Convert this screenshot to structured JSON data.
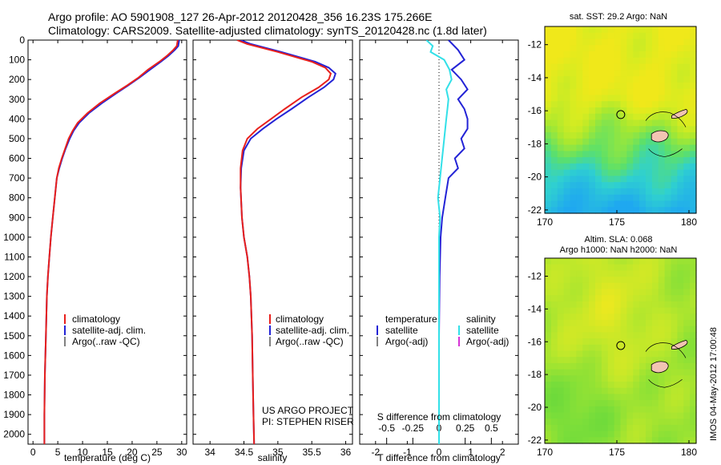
{
  "header": {
    "line1": "Argo profile: AO 5901908_127 26-Apr-2012 20120428_356 16.23S 175.266E",
    "line2": "Climatology: CARS2009. Satellite-adjusted climatology: synTS_20120428.nc (1.8d later)"
  },
  "colors": {
    "climatology": "#e8201c",
    "satellite": "#2323d6",
    "argo": "#000000",
    "sat_s": "#33e0e8",
    "argo_s": "#d633d6"
  },
  "depth_ticks": [
    "0",
    "100",
    "200",
    "300",
    "400",
    "500",
    "600",
    "700",
    "800",
    "900",
    "1000",
    "1100",
    "1200",
    "1300",
    "1400",
    "1500",
    "1600",
    "1700",
    "1800",
    "1900",
    "2000"
  ],
  "legend_panels": [
    "climatology",
    "satellite-adj. clim.",
    "Argo(..raw -QC)"
  ],
  "project": {
    "line1": "US ARGO PROJECT",
    "line2": "PI: STEPHEN RISER"
  },
  "diff_legend": {
    "temp_head": "temperature",
    "sal_head": "salinity",
    "satellite": "satellite",
    "argo": "Argo(-adj)"
  },
  "sst_map": {
    "title": "sat. SST: 29.2 Argo: NaN"
  },
  "sla_map": {
    "title1": "Altim. SLA: 0.068",
    "title2": "Argo h1000: NaN h2000: NaN"
  },
  "side_text": "IMOS 04-May-2012 17:00:48",
  "chart_data": [
    {
      "type": "line",
      "name": "temperature",
      "xlabel": "temperature (deg C)",
      "ylabel": "",
      "xlim": [
        -1,
        31
      ],
      "ylim": [
        2050,
        0
      ],
      "xticks": [
        "0",
        "5",
        "10",
        "15",
        "20",
        "25",
        "30"
      ],
      "series": [
        {
          "name": "climatology",
          "x": [
            29.2,
            29,
            28.3,
            27,
            25.5,
            23.2,
            21.3,
            19,
            16.5,
            13.5,
            11,
            9,
            8,
            7.2,
            6.5,
            5.8,
            5.2,
            4.8,
            4.4,
            4,
            3.6,
            3.3,
            3,
            2.8,
            2.6,
            2.4,
            2.3,
            2.3
          ],
          "y": [
            0,
            30,
            50,
            80,
            110,
            150,
            190,
            230,
            270,
            320,
            370,
            420,
            460,
            500,
            550,
            600,
            650,
            700,
            800,
            900,
            1000,
            1100,
            1200,
            1300,
            1500,
            1700,
            1900,
            2050
          ]
        },
        {
          "name": "satellite-adj. clim.",
          "x": [
            29.5,
            29.3,
            28.6,
            27.3,
            25.8,
            23.6,
            21.5,
            19.2,
            16.8,
            13.9,
            11.3,
            9.3,
            8.2,
            7.4,
            6.6,
            5.9,
            5.3,
            4.8,
            4.4,
            4,
            3.6,
            3.3,
            3,
            2.8,
            2.6,
            2.4,
            2.3,
            2.3
          ],
          "y": [
            0,
            30,
            50,
            80,
            110,
            150,
            190,
            230,
            270,
            320,
            370,
            420,
            460,
            500,
            550,
            600,
            650,
            700,
            800,
            900,
            1000,
            1100,
            1200,
            1300,
            1500,
            1700,
            1900,
            2050
          ]
        }
      ]
    },
    {
      "type": "line",
      "name": "salinity",
      "xlabel": "salinity",
      "ylabel": "",
      "xlim": [
        33.75,
        36.1
      ],
      "ylim": [
        2050,
        0
      ],
      "xticks": [
        "34",
        "34.5",
        "35",
        "35.5",
        "36"
      ],
      "series": [
        {
          "name": "climatology",
          "x": [
            34.4,
            34.55,
            35,
            35.5,
            35.7,
            35.78,
            35.75,
            35.6,
            35.35,
            35.1,
            34.9,
            34.7,
            34.55,
            34.48,
            34.45,
            34.45,
            34.47,
            34.5,
            34.55,
            34.58,
            34.6,
            34.62,
            34.63,
            34.64,
            34.65
          ],
          "y": [
            0,
            20,
            60,
            110,
            140,
            170,
            200,
            240,
            290,
            350,
            400,
            450,
            500,
            560,
            650,
            750,
            900,
            1000,
            1100,
            1200,
            1300,
            1500,
            1700,
            1900,
            2050
          ]
        },
        {
          "name": "satellite-adj. clim.",
          "x": [
            34.45,
            34.6,
            35.05,
            35.55,
            35.75,
            35.85,
            35.82,
            35.68,
            35.45,
            35.2,
            34.98,
            34.78,
            34.6,
            34.5,
            34.46,
            34.45,
            34.47,
            34.5,
            34.55,
            34.58,
            34.6,
            34.62,
            34.63,
            34.64,
            34.65
          ],
          "y": [
            0,
            20,
            60,
            110,
            140,
            170,
            200,
            240,
            290,
            350,
            400,
            450,
            500,
            560,
            650,
            750,
            900,
            1000,
            1100,
            1200,
            1300,
            1500,
            1700,
            1900,
            2050
          ]
        }
      ]
    },
    {
      "type": "line",
      "name": "differences",
      "xlabel": "T difference from climatology",
      "x2label": "S difference from climatology",
      "xlim": [
        -2.5,
        2.5
      ],
      "ylim": [
        2050,
        0
      ],
      "xticks": [
        "-2",
        "-1",
        "0",
        "1",
        "2"
      ],
      "x2ticks": [
        "-0.5",
        "-0.25",
        "0",
        "0.25",
        "0.5"
      ],
      "series": [
        {
          "name": "T satellite",
          "x": [
            0.3,
            0.6,
            0.8,
            0.4,
            0.7,
            0.9,
            0.6,
            0.8,
            0.9,
            0.9,
            0.7,
            0.8,
            0.5,
            0.6,
            0.3,
            0.2,
            0.1,
            0.05,
            0.02,
            0,
            0
          ],
          "y": [
            0,
            50,
            100,
            150,
            200,
            250,
            300,
            350,
            400,
            450,
            500,
            550,
            600,
            650,
            700,
            800,
            900,
            1000,
            1200,
            1500,
            2050
          ]
        },
        {
          "name": "S satellite",
          "x": [
            -0.12,
            -0.06,
            -0.08,
            0.05,
            0.1,
            0.12,
            0.07,
            0.09,
            0.08,
            0.07,
            0.06,
            0.05,
            0.04,
            0.03,
            0.02,
            0.01,
            -0.01,
            0.01,
            0,
            0,
            0
          ],
          "y": [
            0,
            30,
            60,
            100,
            150,
            200,
            250,
            300,
            350,
            400,
            450,
            500,
            550,
            600,
            650,
            700,
            800,
            900,
            1000,
            1100,
            2050
          ]
        }
      ]
    },
    {
      "type": "heatmap",
      "name": "sst_map",
      "xlim": [
        170,
        180.5
      ],
      "ylim": [
        -22.2,
        -10.9
      ],
      "xticks": [
        "170",
        "175",
        "180"
      ],
      "yticks": [
        "-12",
        "-14",
        "-16",
        "-18",
        "-20",
        "-22"
      ],
      "marker": {
        "x": 175.27,
        "y": -16.23
      }
    },
    {
      "type": "heatmap",
      "name": "sla_map",
      "xlim": [
        170,
        180.5
      ],
      "ylim": [
        -22.2,
        -10.9
      ],
      "xticks": [
        "170",
        "175",
        "180"
      ],
      "yticks": [
        "-12",
        "-14",
        "-16",
        "-18",
        "-20",
        "-22"
      ],
      "marker": {
        "x": 175.27,
        "y": -16.23
      }
    }
  ]
}
